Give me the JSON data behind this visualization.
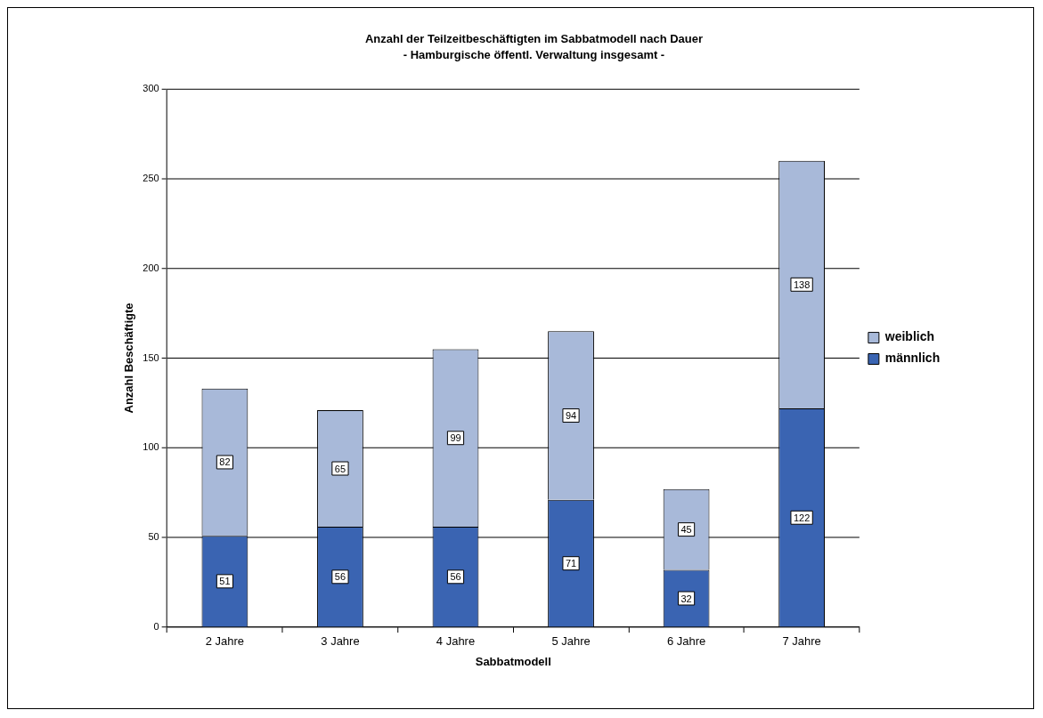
{
  "chart_data": {
    "type": "bar",
    "title": "Anzahl der Teilzeitbeschäftigten im Sabbatmodell nach Dauer",
    "subtitle": "- Hamburgische öffentl. Verwaltung insgesamt -",
    "xlabel": "Sabbatmodell",
    "ylabel": "Anzahl Beschäftigte",
    "categories": [
      "2 Jahre",
      "3 Jahre",
      "4 Jahre",
      "5 Jahre",
      "6 Jahre",
      "7 Jahre"
    ],
    "stacked": true,
    "series": [
      {
        "name": "männlich",
        "color": "#3a64b2",
        "values": [
          51,
          56,
          56,
          71,
          32,
          122
        ]
      },
      {
        "name": "weiblich",
        "color": "#a8b9d9",
        "values": [
          82,
          65,
          99,
          94,
          45,
          138
        ]
      }
    ],
    "ylim": [
      0,
      300
    ],
    "yticks": [
      0,
      50,
      100,
      150,
      200,
      250,
      300
    ],
    "grid": "y",
    "legend": "right",
    "data_labels": true
  }
}
